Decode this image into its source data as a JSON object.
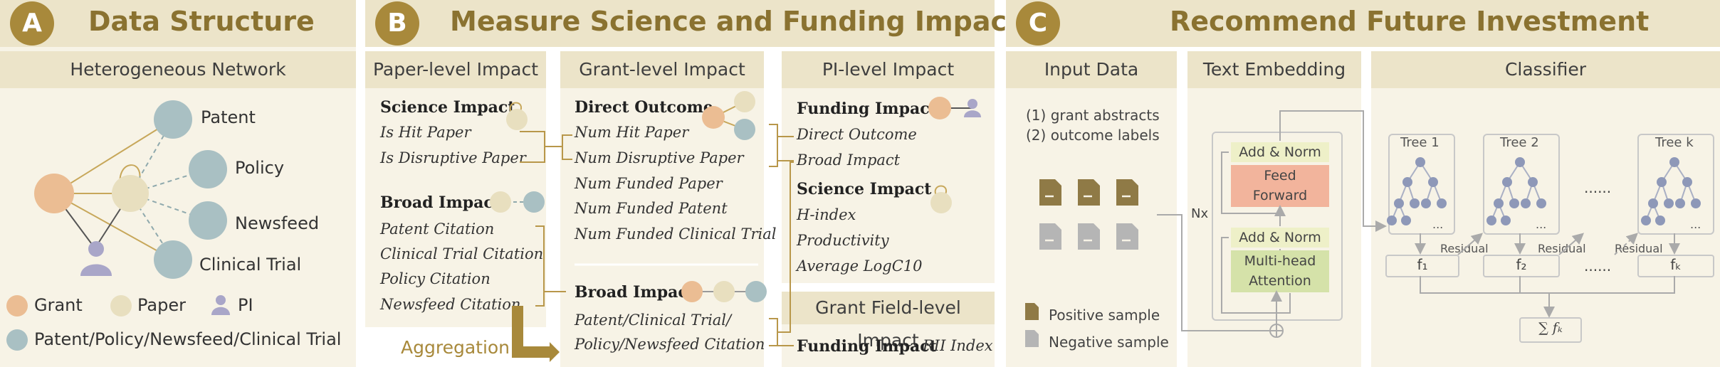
{
  "panelA": {
    "badge": "A",
    "title": "Data Structure",
    "subtitle": "Heterogeneous Network",
    "nodes": {
      "patent": "Patent",
      "policy": "Policy",
      "newsfeed": "Newsfeed",
      "clinical": "Clinical Trial"
    },
    "legend": {
      "grant": "Grant",
      "paper": "Paper",
      "pi": "PI",
      "other": "Patent/Policy/Newsfeed/Clinical Trial"
    },
    "colors": {
      "grant": "#ebbd93",
      "paper": "#e8dfbf",
      "other": "#a9c0c3",
      "pi": "#a9a6c8"
    }
  },
  "panelB": {
    "badge": "B",
    "title": "Measure Science and Funding Impact",
    "paper_level": {
      "header": "Paper-level Impact",
      "science_title": "Science Impact",
      "science_items": [
        "Is Hit Paper",
        "Is Disruptive Paper"
      ],
      "broad_title": "Broad Impact",
      "broad_items": [
        "Patent Citation",
        "Clinical Trial Citation",
        "Policy Citation",
        "Newsfeed Citation"
      ]
    },
    "aggregation": "Aggregation",
    "grant_level": {
      "header": "Grant-level Impact",
      "direct_title": "Direct Outcome",
      "direct_items": [
        "Num Hit Paper",
        "Num Disruptive Paper",
        "Num Funded Paper",
        "Num Funded Patent",
        "Num Funded Clinical Trial"
      ],
      "broad_title": "Broad Impact",
      "broad_items": [
        "Patent/Clinical Trial/",
        "Policy/Newsfeed Citation"
      ]
    },
    "pi_level": {
      "header": "PI-level Impact",
      "funding_title": "Funding Impact",
      "funding_items": [
        "Direct Outcome",
        "Broad Impact"
      ],
      "science_title": "Science Impact",
      "science_items": [
        "H-index",
        "Productivity",
        "Average LogC10"
      ]
    },
    "field_level": {
      "header": "Grant Field-level Impact",
      "funding_title": "Funding Impact",
      "funding_value": "RII Index"
    }
  },
  "panelC": {
    "badge": "C",
    "title": "Recommend Future Investment",
    "input": {
      "header": "Input Data",
      "items": [
        "(1) grant abstracts",
        "(2) outcome labels"
      ],
      "legend_pos": "Positive sample",
      "legend_neg": "Negative sample",
      "colors": {
        "positive": "#8f7a46",
        "negative": "#b5b5b5"
      }
    },
    "embedding": {
      "header": "Text Embedding",
      "nx": "Nx",
      "add_norm": "Add & Norm",
      "ffn": [
        "Feed",
        "Forward"
      ],
      "attention": [
        "Multi-head",
        "Attention"
      ],
      "colors": {
        "ffn": "#f2b49c",
        "attn": "#d5e2a9",
        "norm": "#eef0c8"
      }
    },
    "classifier": {
      "header": "Classifier",
      "trees": [
        "Tree 1",
        "Tree 2",
        "Tree k"
      ],
      "funcs": [
        "f₁",
        "f₂",
        "fₖ"
      ],
      "residual": "Residual",
      "dots": "......",
      "ellipsis": "...",
      "sum": "∑ fₖ"
    }
  }
}
